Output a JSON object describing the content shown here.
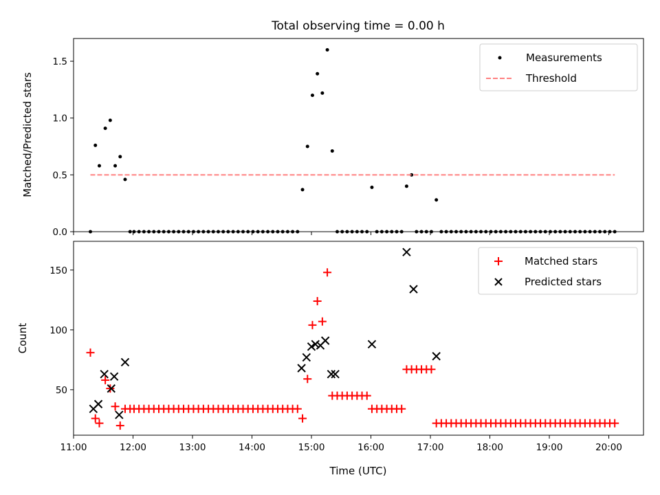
{
  "chart_data": [
    {
      "type": "scatter",
      "title": "Total observing time = 0.00 h",
      "xlabel": "",
      "ylabel": "Matched/Predicted stars",
      "xlim": [
        "11:00",
        "20:35"
      ],
      "ylim": [
        0,
        1.7
      ],
      "y_ticks": [
        "0.0",
        "0.5",
        "1.0",
        "1.5"
      ],
      "grid": false,
      "legend_position": "top-right",
      "series": [
        {
          "name": "Measurements",
          "color": "#000000",
          "marker": "dot",
          "x": [
            "11:17",
            "11:22",
            "11:26",
            "11:32",
            "11:37",
            "11:42",
            "11:47",
            "11:52",
            "11:57",
            "12:01",
            "12:06",
            "12:11",
            "12:16",
            "12:21",
            "12:26",
            "12:31",
            "12:36",
            "12:41",
            "12:46",
            "12:51",
            "12:56",
            "13:01",
            "13:06",
            "13:11",
            "13:16",
            "13:21",
            "13:26",
            "13:31",
            "13:36",
            "13:41",
            "13:46",
            "13:51",
            "13:56",
            "14:01",
            "14:06",
            "14:11",
            "14:16",
            "14:21",
            "14:26",
            "14:31",
            "14:36",
            "14:41",
            "14:46",
            "14:51",
            "14:56",
            "15:01",
            "15:06",
            "15:11",
            "15:16",
            "15:21",
            "15:26",
            "15:31",
            "15:36",
            "15:41",
            "15:46",
            "15:51",
            "15:56",
            "16:01",
            "16:06",
            "16:11",
            "16:16",
            "16:21",
            "16:26",
            "16:31",
            "16:36",
            "16:41",
            "16:46",
            "16:51",
            "16:56",
            "17:01",
            "17:06",
            "17:11",
            "17:16",
            "17:21",
            "17:26",
            "17:31",
            "17:36",
            "17:41",
            "17:46",
            "17:51",
            "17:56",
            "18:01",
            "18:06",
            "18:11",
            "18:16",
            "18:21",
            "18:26",
            "18:31",
            "18:36",
            "18:41",
            "18:46",
            "18:51",
            "18:56",
            "19:01",
            "19:06",
            "19:11",
            "19:16",
            "19:21",
            "19:26",
            "19:31",
            "19:36",
            "19:41",
            "19:46",
            "19:51",
            "19:56",
            "20:01",
            "20:06"
          ],
          "y": [
            0,
            0.76,
            0.58,
            0.91,
            0.98,
            0.58,
            0.66,
            0.46,
            0,
            0,
            0,
            0,
            0,
            0,
            0,
            0,
            0,
            0,
            0,
            0,
            0,
            0,
            0,
            0,
            0,
            0,
            0,
            0,
            0,
            0,
            0,
            0,
            0,
            0,
            0,
            0,
            0,
            0,
            0,
            0,
            0,
            0,
            0,
            0.37,
            0.75,
            1.2,
            1.39,
            1.22,
            1.6,
            0.71,
            0,
            0,
            0,
            0,
            0,
            0,
            0,
            0.39,
            0,
            0,
            0,
            0,
            0,
            0,
            0.4,
            0.5,
            0,
            0,
            0,
            0,
            0.28,
            0,
            0,
            0,
            0,
            0,
            0,
            0,
            0,
            0,
            0,
            0,
            0,
            0,
            0,
            0,
            0,
            0,
            0,
            0,
            0,
            0,
            0,
            0,
            0,
            0,
            0,
            0,
            0,
            0,
            0,
            0,
            0,
            0,
            0,
            0,
            0
          ]
        },
        {
          "name": "Threshold",
          "color": "#ff7f7f",
          "style": "dashed",
          "x": [
            "11:17",
            "20:06"
          ],
          "y": [
            0.5,
            0.5
          ]
        }
      ]
    },
    {
      "type": "scatter",
      "title": "",
      "xlabel": "Time (UTC)",
      "ylabel": "Count",
      "xlim": [
        "11:00",
        "20:35"
      ],
      "ylim": [
        12,
        174
      ],
      "y_ticks": [
        "50",
        "100",
        "150"
      ],
      "x_ticks": [
        "11:00",
        "12:00",
        "13:00",
        "14:00",
        "15:00",
        "16:00",
        "17:00",
        "18:00",
        "19:00",
        "20:00"
      ],
      "grid": false,
      "legend_position": "top-right",
      "series": [
        {
          "name": "Matched stars",
          "color": "#ff0000",
          "marker": "plus",
          "x": [
            "11:17",
            "11:22",
            "11:26",
            "11:32",
            "11:37",
            "11:42",
            "11:47",
            "11:52",
            "11:57",
            "12:01",
            "12:06",
            "12:11",
            "12:16",
            "12:21",
            "12:26",
            "12:31",
            "12:36",
            "12:41",
            "12:46",
            "12:51",
            "12:56",
            "13:01",
            "13:06",
            "13:11",
            "13:16",
            "13:21",
            "13:26",
            "13:31",
            "13:36",
            "13:41",
            "13:46",
            "13:51",
            "13:56",
            "14:01",
            "14:06",
            "14:11",
            "14:16",
            "14:21",
            "14:26",
            "14:31",
            "14:36",
            "14:41",
            "14:46",
            "14:51",
            "14:56",
            "15:01",
            "15:06",
            "15:11",
            "15:16",
            "15:21",
            "15:26",
            "15:31",
            "15:36",
            "15:41",
            "15:46",
            "15:51",
            "15:56",
            "16:01",
            "16:06",
            "16:11",
            "16:16",
            "16:21",
            "16:26",
            "16:31",
            "16:36",
            "16:41",
            "16:46",
            "16:51",
            "16:56",
            "17:01",
            "17:06",
            "17:11",
            "17:16",
            "17:21",
            "17:26",
            "17:31",
            "17:36",
            "17:41",
            "17:46",
            "17:51",
            "17:56",
            "18:01",
            "18:06",
            "18:11",
            "18:16",
            "18:21",
            "18:26",
            "18:31",
            "18:36",
            "18:41",
            "18:46",
            "18:51",
            "18:56",
            "19:01",
            "19:06",
            "19:11",
            "19:16",
            "19:21",
            "19:26",
            "19:31",
            "19:36",
            "19:41",
            "19:46",
            "19:51",
            "19:56",
            "20:01",
            "20:06"
          ],
          "y": [
            81,
            26,
            22,
            58,
            51,
            36,
            20,
            34,
            34,
            34,
            34,
            34,
            34,
            34,
            34,
            34,
            34,
            34,
            34,
            34,
            34,
            34,
            34,
            34,
            34,
            34,
            34,
            34,
            34,
            34,
            34,
            34,
            34,
            34,
            34,
            34,
            34,
            34,
            34,
            34,
            34,
            34,
            34,
            26,
            59,
            104,
            124,
            107,
            148,
            45,
            45,
            45,
            45,
            45,
            45,
            45,
            45,
            34,
            34,
            34,
            34,
            34,
            34,
            34,
            67,
            67,
            67,
            67,
            67,
            67,
            22,
            22,
            22,
            22,
            22,
            22,
            22,
            22,
            22,
            22,
            22,
            22,
            22,
            22,
            22,
            22,
            22,
            22,
            22,
            22,
            22,
            22,
            22,
            22,
            22,
            22,
            22,
            22,
            22,
            22,
            22,
            22,
            22,
            22,
            22,
            22,
            22
          ]
        },
        {
          "name": "Predicted stars",
          "color": "#000000",
          "marker": "x",
          "x": [
            "11:20",
            "11:25",
            "11:31",
            "11:38",
            "11:41",
            "11:46",
            "11:52",
            "14:50",
            "14:55",
            "15:00",
            "15:04",
            "15:09",
            "15:14",
            "15:20",
            "15:24",
            "16:01",
            "16:36",
            "16:43",
            "17:06"
          ],
          "y": [
            34,
            38,
            63,
            51,
            61,
            29,
            73,
            68,
            77,
            86,
            88,
            87,
            91,
            63,
            63,
            88,
            165,
            134,
            78
          ]
        }
      ]
    }
  ]
}
